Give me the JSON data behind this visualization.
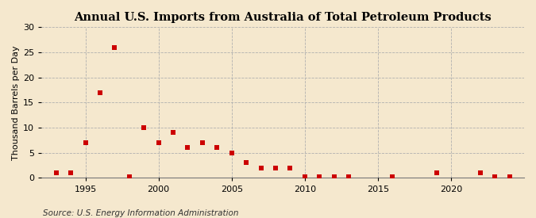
{
  "title": "Annual U.S. Imports from Australia of Total Petroleum Products",
  "ylabel": "Thousand Barrels per Day",
  "source": "Source: U.S. Energy Information Administration",
  "years": [
    1993,
    1994,
    1995,
    1996,
    1997,
    1998,
    1999,
    2000,
    2001,
    2002,
    2003,
    2004,
    2005,
    2006,
    2007,
    2008,
    2009,
    2010,
    2011,
    2012,
    2013,
    2016,
    2019,
    2022,
    2023,
    2024
  ],
  "values": [
    1,
    1,
    7,
    17,
    26,
    0.2,
    10,
    7,
    9,
    6,
    7,
    6,
    5,
    3,
    2,
    2,
    2,
    0.3,
    0.3,
    0.3,
    0.3,
    0.3,
    1,
    1,
    0.3,
    0.3
  ],
  "marker_color": "#cc0000",
  "marker_size": 18,
  "bg_color": "#f5e8ce",
  "grid_color": "#b0b0b0",
  "xlim": [
    1992,
    2025
  ],
  "ylim": [
    0,
    30
  ],
  "yticks": [
    0,
    5,
    10,
    15,
    20,
    25,
    30
  ],
  "xticks": [
    1995,
    2000,
    2005,
    2010,
    2015,
    2020
  ],
  "title_fontsize": 10.5,
  "ylabel_fontsize": 8,
  "tick_fontsize": 8,
  "source_fontsize": 7.5
}
